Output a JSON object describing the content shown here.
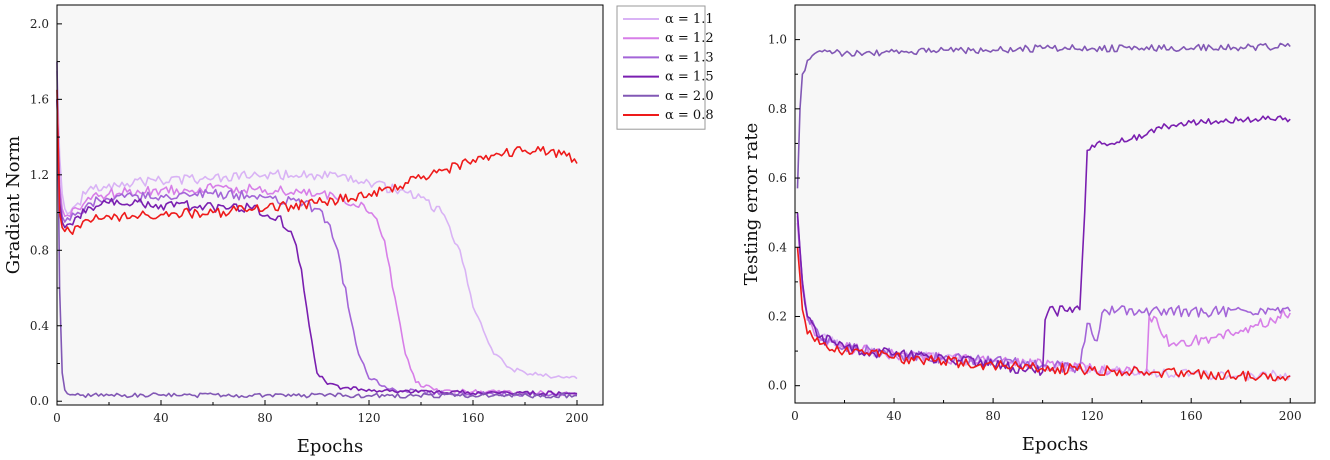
{
  "chart_data": [
    {
      "type": "line",
      "xlabel": "Epochs",
      "ylabel": "Gradient Norm",
      "xlim": [
        0,
        210
      ],
      "ylim": [
        -0.02,
        2.1
      ],
      "xticks": [
        0,
        40,
        80,
        120,
        160,
        200
      ],
      "yticks": [
        0.0,
        0.4,
        0.8,
        1.2,
        1.6,
        2.0
      ],
      "ytick_labels": [
        "0.0",
        "0.4",
        "0.8",
        "1.2",
        "1.6",
        "2.0"
      ],
      "background": "#f7f7f7",
      "grid": false,
      "legend_position": "outside-right",
      "series": [
        {
          "name": "α = 1.1",
          "color": "#d9b3f5",
          "x": [
            0,
            1,
            2,
            3,
            5,
            8,
            12,
            20,
            40,
            60,
            80,
            100,
            120,
            130,
            140,
            148,
            155,
            160,
            168,
            175,
            185,
            200
          ],
          "y": [
            1.75,
            1.3,
            1.1,
            1.02,
            1.0,
            1.05,
            1.12,
            1.15,
            1.17,
            1.18,
            1.2,
            1.2,
            1.16,
            1.12,
            1.08,
            1.0,
            0.8,
            0.5,
            0.25,
            0.17,
            0.14,
            0.12
          ]
        },
        {
          "name": "α = 1.2",
          "color": "#d77ee8",
          "x": [
            0,
            1,
            2,
            3,
            5,
            8,
            12,
            20,
            40,
            60,
            80,
            100,
            110,
            118,
            122,
            126,
            130,
            134,
            138,
            145,
            160,
            200
          ],
          "y": [
            1.6,
            1.15,
            1.02,
            0.98,
            0.98,
            1.02,
            1.08,
            1.1,
            1.12,
            1.13,
            1.12,
            1.1,
            1.07,
            1.04,
            0.98,
            0.85,
            0.55,
            0.25,
            0.1,
            0.06,
            0.05,
            0.04
          ]
        },
        {
          "name": "α = 1.3",
          "color": "#a365d8",
          "x": [
            0,
            1,
            2,
            3,
            5,
            8,
            12,
            20,
            40,
            60,
            80,
            95,
            100,
            104,
            108,
            112,
            116,
            120,
            130,
            150,
            200
          ],
          "y": [
            1.6,
            1.1,
            0.98,
            0.95,
            0.96,
            1.0,
            1.05,
            1.07,
            1.09,
            1.1,
            1.08,
            1.05,
            1.02,
            0.95,
            0.8,
            0.5,
            0.25,
            0.12,
            0.06,
            0.04,
            0.035
          ]
        },
        {
          "name": "α = 1.5",
          "color": "#7a1fb0",
          "x": [
            0,
            1,
            2,
            3,
            5,
            8,
            12,
            20,
            40,
            60,
            75,
            85,
            90,
            94,
            97,
            100,
            104,
            110,
            130,
            200
          ],
          "y": [
            1.6,
            1.05,
            0.95,
            0.92,
            0.94,
            0.98,
            1.03,
            1.05,
            1.04,
            1.03,
            1.02,
            0.98,
            0.9,
            0.7,
            0.4,
            0.15,
            0.09,
            0.07,
            0.05,
            0.04
          ]
        },
        {
          "name": "α = 2.0",
          "color": "#8258b5",
          "x": [
            0,
            1,
            2,
            3,
            4,
            6,
            10,
            40,
            80,
            120,
            160,
            200
          ],
          "y": [
            1.8,
            0.6,
            0.15,
            0.06,
            0.04,
            0.035,
            0.033,
            0.032,
            0.031,
            0.03,
            0.03,
            0.03
          ]
        },
        {
          "name": "α = 0.8",
          "color": "#ee1a1a",
          "x": [
            0,
            1,
            2,
            3,
            5,
            8,
            12,
            20,
            40,
            60,
            80,
            100,
            120,
            140,
            150,
            160,
            170,
            180,
            190,
            196,
            200
          ],
          "y": [
            1.65,
            1.0,
            0.92,
            0.9,
            0.9,
            0.93,
            0.96,
            0.98,
            0.99,
            1.0,
            1.02,
            1.05,
            1.1,
            1.18,
            1.23,
            1.28,
            1.31,
            1.33,
            1.33,
            1.3,
            1.26
          ]
        }
      ]
    },
    {
      "type": "line",
      "xlabel": "Epochs",
      "ylabel": "Testing error rate",
      "xlim": [
        0,
        210
      ],
      "ylim": [
        -0.05,
        1.1
      ],
      "xticks": [
        0,
        40,
        80,
        120,
        160,
        200
      ],
      "yticks": [
        0.0,
        0.2,
        0.4,
        0.6,
        0.8,
        1.0
      ],
      "ytick_labels": [
        "0.0",
        "0.2",
        "0.4",
        "0.6",
        "0.8",
        "1.0"
      ],
      "background": "#f7f7f7",
      "grid": false,
      "series": [
        {
          "name": "α = 1.1",
          "color": "#d9b3f5",
          "x": [
            1,
            3,
            5,
            10,
            20,
            40,
            60,
            80,
            100,
            120,
            140,
            160,
            180,
            200
          ],
          "y": [
            0.48,
            0.3,
            0.2,
            0.14,
            0.11,
            0.09,
            0.08,
            0.07,
            0.06,
            0.05,
            0.04,
            0.035,
            0.03,
            0.03
          ]
        },
        {
          "name": "α = 1.2",
          "color": "#d77ee8",
          "x": [
            1,
            3,
            5,
            10,
            20,
            40,
            60,
            80,
            100,
            120,
            140,
            142,
            143,
            145,
            148,
            152,
            170,
            185,
            195,
            200
          ],
          "y": [
            0.47,
            0.28,
            0.19,
            0.13,
            0.11,
            0.09,
            0.08,
            0.07,
            0.06,
            0.05,
            0.04,
            0.04,
            0.2,
            0.2,
            0.15,
            0.12,
            0.14,
            0.17,
            0.2,
            0.21
          ]
        },
        {
          "name": "α = 1.3",
          "color": "#a365d8",
          "x": [
            1,
            3,
            5,
            10,
            20,
            40,
            60,
            80,
            100,
            115,
            118,
            120,
            122,
            124,
            126,
            200
          ],
          "y": [
            0.49,
            0.3,
            0.2,
            0.14,
            0.11,
            0.09,
            0.08,
            0.07,
            0.06,
            0.05,
            0.18,
            0.15,
            0.13,
            0.21,
            0.215,
            0.215
          ]
        },
        {
          "name": "α = 1.5",
          "color": "#7a1fb0",
          "x": [
            1,
            3,
            5,
            10,
            20,
            40,
            60,
            80,
            100,
            101,
            102,
            105,
            110,
            115,
            117,
            118,
            120,
            125,
            135,
            150,
            160,
            170,
            180,
            190,
            200
          ],
          "y": [
            0.5,
            0.3,
            0.2,
            0.14,
            0.11,
            0.09,
            0.08,
            0.06,
            0.04,
            0.19,
            0.21,
            0.215,
            0.215,
            0.22,
            0.5,
            0.68,
            0.695,
            0.7,
            0.71,
            0.75,
            0.76,
            0.765,
            0.77,
            0.77,
            0.77
          ]
        },
        {
          "name": "α = 2.0",
          "color": "#8258b5",
          "x": [
            1,
            2,
            3,
            5,
            8,
            12,
            20,
            40,
            60,
            80,
            100,
            120,
            140,
            160,
            180,
            200
          ],
          "y": [
            0.57,
            0.8,
            0.9,
            0.94,
            0.96,
            0.97,
            0.96,
            0.965,
            0.97,
            0.97,
            0.975,
            0.975,
            0.975,
            0.975,
            0.978,
            0.98
          ]
        },
        {
          "name": "α = 0.8",
          "color": "#ee1a1a",
          "x": [
            1,
            3,
            5,
            10,
            20,
            40,
            60,
            80,
            100,
            120,
            140,
            160,
            180,
            200
          ],
          "y": [
            0.4,
            0.22,
            0.15,
            0.12,
            0.1,
            0.08,
            0.07,
            0.06,
            0.05,
            0.045,
            0.04,
            0.035,
            0.03,
            0.028
          ]
        }
      ]
    }
  ]
}
